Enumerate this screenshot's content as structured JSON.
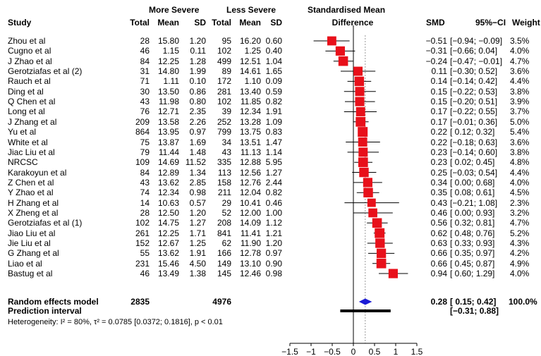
{
  "chart_data": {
    "type": "forest",
    "title": "",
    "headers": {
      "study": "Study",
      "group1": "More Severe",
      "group2": "Less Severe",
      "total": "Total",
      "mean": "Mean",
      "sd": "SD",
      "plot_line1": "Standardised Mean",
      "plot_line2": "Difference",
      "smd": "SMD",
      "ci": "95%−CI",
      "weight": "Weight"
    },
    "studies": [
      {
        "study": "Zhou et al",
        "n1": "28",
        "m1": "15.80",
        "sd1": "1.20",
        "n2": "95",
        "m2": "16.20",
        "sd2": "0.60",
        "smd": -0.51,
        "lo": -0.94,
        "hi": -0.09,
        "smd_text": "−0.51",
        "ci_text": "[−0.94; −0.09]",
        "weight": "3.5%"
      },
      {
        "study": "Cugno et al",
        "n1": "46",
        "m1": "1.15",
        "sd1": "0.11",
        "n2": "102",
        "m2": "1.25",
        "sd2": "0.40",
        "smd": -0.31,
        "lo": -0.66,
        "hi": 0.04,
        "smd_text": "−0.31",
        "ci_text": "[−0.66; 0.04]",
        "weight": "4.0%"
      },
      {
        "study": "J Zhao et al",
        "n1": "84",
        "m1": "12.25",
        "sd1": "1.28",
        "n2": "499",
        "m2": "12.51",
        "sd2": "1.04",
        "smd": -0.24,
        "lo": -0.47,
        "hi": -0.01,
        "smd_text": "−0.24",
        "ci_text": "[−0.47; −0.01]",
        "weight": "4.7%"
      },
      {
        "study": "Gerotziafas et al (2)",
        "n1": "31",
        "m1": "14.80",
        "sd1": "1.99",
        "n2": "89",
        "m2": "14.61",
        "sd2": "1.65",
        "smd": 0.11,
        "lo": -0.3,
        "hi": 0.52,
        "smd_text": "0.11",
        "ci_text": "[−0.30; 0.52]",
        "weight": "3.6%"
      },
      {
        "study": "Rauch et al",
        "n1": "71",
        "m1": "1.11",
        "sd1": "0.10",
        "n2": "172",
        "m2": "1.10",
        "sd2": "0.09",
        "smd": 0.14,
        "lo": -0.14,
        "hi": 0.42,
        "smd_text": "0.14",
        "ci_text": "[−0.14; 0.42]",
        "weight": "4.4%"
      },
      {
        "study": "Ding et al",
        "n1": "30",
        "m1": "13.50",
        "sd1": "0.86",
        "n2": "281",
        "m2": "13.40",
        "sd2": "0.59",
        "smd": 0.15,
        "lo": -0.22,
        "hi": 0.53,
        "smd_text": "0.15",
        "ci_text": "[−0.22; 0.53]",
        "weight": "3.8%"
      },
      {
        "study": "Q Chen et al",
        "n1": "43",
        "m1": "11.98",
        "sd1": "0.80",
        "n2": "102",
        "m2": "11.85",
        "sd2": "0.82",
        "smd": 0.15,
        "lo": -0.2,
        "hi": 0.51,
        "smd_text": "0.15",
        "ci_text": "[−0.20; 0.51]",
        "weight": "3.9%"
      },
      {
        "study": "Long et al",
        "n1": "76",
        "m1": "12.71",
        "sd1": "2.35",
        "n2": "39",
        "m2": "12.34",
        "sd2": "1.91",
        "smd": 0.17,
        "lo": -0.22,
        "hi": 0.55,
        "smd_text": "0.17",
        "ci_text": "[−0.22; 0.55]",
        "weight": "3.7%"
      },
      {
        "study": "J Zhang et al",
        "n1": "209",
        "m1": "13.58",
        "sd1": "2.26",
        "n2": "252",
        "m2": "13.28",
        "sd2": "1.09",
        "smd": 0.17,
        "lo": -0.01,
        "hi": 0.36,
        "smd_text": "0.17",
        "ci_text": "[−0.01; 0.36]",
        "weight": "5.0%"
      },
      {
        "study": "Yu et al",
        "n1": "864",
        "m1": "13.95",
        "sd1": "0.97",
        "n2": "799",
        "m2": "13.75",
        "sd2": "0.83",
        "smd": 0.22,
        "lo": 0.12,
        "hi": 0.32,
        "smd_text": "0.22",
        "ci_text": "[ 0.12; 0.32]",
        "weight": "5.4%"
      },
      {
        "study": "White et al",
        "n1": "75",
        "m1": "13.87",
        "sd1": "1.69",
        "n2": "34",
        "m2": "13.51",
        "sd2": "1.47",
        "smd": 0.22,
        "lo": -0.18,
        "hi": 0.63,
        "smd_text": "0.22",
        "ci_text": "[−0.18; 0.63]",
        "weight": "3.6%"
      },
      {
        "study": "Jiac Liu et al",
        "n1": "79",
        "m1": "11.44",
        "sd1": "1.48",
        "n2": "43",
        "m2": "11.13",
        "sd2": "1.14",
        "smd": 0.23,
        "lo": -0.14,
        "hi": 0.6,
        "smd_text": "0.23",
        "ci_text": "[−0.14; 0.60]",
        "weight": "3.8%"
      },
      {
        "study": "NRCSC",
        "n1": "109",
        "m1": "14.69",
        "sd1": "11.52",
        "n2": "335",
        "m2": "12.88",
        "sd2": "5.95",
        "smd": 0.23,
        "lo": 0.02,
        "hi": 0.45,
        "smd_text": "0.23",
        "ci_text": "[ 0.02; 0.45]",
        "weight": "4.8%"
      },
      {
        "study": "Karakoyun et al",
        "n1": "84",
        "m1": "12.89",
        "sd1": "1.34",
        "n2": "113",
        "m2": "12.56",
        "sd2": "1.27",
        "smd": 0.25,
        "lo": -0.03,
        "hi": 0.54,
        "smd_text": "0.25",
        "ci_text": "[−0.03; 0.54]",
        "weight": "4.4%"
      },
      {
        "study": "Z Chen et al",
        "n1": "43",
        "m1": "13.62",
        "sd1": "2.85",
        "n2": "158",
        "m2": "12.76",
        "sd2": "2.44",
        "smd": 0.34,
        "lo": 0.0,
        "hi": 0.68,
        "smd_text": "0.34",
        "ci_text": "[ 0.00; 0.68]",
        "weight": "4.0%"
      },
      {
        "study": "Y Zhao et al",
        "n1": "74",
        "m1": "12.34",
        "sd1": "0.98",
        "n2": "211",
        "m2": "12.04",
        "sd2": "0.82",
        "smd": 0.35,
        "lo": 0.08,
        "hi": 0.61,
        "smd_text": "0.35",
        "ci_text": "[ 0.08; 0.61]",
        "weight": "4.5%"
      },
      {
        "study": "H Zhang et al",
        "n1": "14",
        "m1": "10.63",
        "sd1": "0.57",
        "n2": "29",
        "m2": "10.41",
        "sd2": "0.46",
        "smd": 0.43,
        "lo": -0.21,
        "hi": 1.08,
        "smd_text": "0.43",
        "ci_text": "[−0.21; 1.08]",
        "weight": "2.3%"
      },
      {
        "study": "X Zheng et al",
        "n1": "28",
        "m1": "12.50",
        "sd1": "1.20",
        "n2": "52",
        "m2": "12.00",
        "sd2": "1.00",
        "smd": 0.46,
        "lo": 0.0,
        "hi": 0.93,
        "smd_text": "0.46",
        "ci_text": "[ 0.00; 0.93]",
        "weight": "3.2%"
      },
      {
        "study": "Gerotziafas et al (1)",
        "n1": "102",
        "m1": "14.75",
        "sd1": "1.27",
        "n2": "208",
        "m2": "14.09",
        "sd2": "1.12",
        "smd": 0.56,
        "lo": 0.32,
        "hi": 0.81,
        "smd_text": "0.56",
        "ci_text": "[ 0.32; 0.81]",
        "weight": "4.7%"
      },
      {
        "study": "Jiao Liu et al",
        "n1": "261",
        "m1": "12.25",
        "sd1": "1.71",
        "n2": "841",
        "m2": "11.41",
        "sd2": "1.21",
        "smd": 0.62,
        "lo": 0.48,
        "hi": 0.76,
        "smd_text": "0.62",
        "ci_text": "[ 0.48; 0.76]",
        "weight": "5.2%"
      },
      {
        "study": "Jie Liu et al",
        "n1": "152",
        "m1": "12.67",
        "sd1": "1.25",
        "n2": "62",
        "m2": "11.90",
        "sd2": "1.20",
        "smd": 0.63,
        "lo": 0.33,
        "hi": 0.93,
        "smd_text": "0.63",
        "ci_text": "[ 0.33; 0.93]",
        "weight": "4.3%"
      },
      {
        "study": "G Zhang et al",
        "n1": "55",
        "m1": "13.62",
        "sd1": "1.91",
        "n2": "166",
        "m2": "12.78",
        "sd2": "0.97",
        "smd": 0.66,
        "lo": 0.35,
        "hi": 0.97,
        "smd_text": "0.66",
        "ci_text": "[ 0.35; 0.97]",
        "weight": "4.2%"
      },
      {
        "study": "Liao et al",
        "n1": "231",
        "m1": "15.46",
        "sd1": "4.50",
        "n2": "149",
        "m2": "13.10",
        "sd2": "0.90",
        "smd": 0.66,
        "lo": 0.45,
        "hi": 0.87,
        "smd_text": "0.66",
        "ci_text": "[ 0.45; 0.87]",
        "weight": "4.9%"
      },
      {
        "study": "Bastug et al",
        "n1": "46",
        "m1": "13.49",
        "sd1": "1.38",
        "n2": "145",
        "m2": "12.46",
        "sd2": "0.98",
        "smd": 0.94,
        "lo": 0.6,
        "hi": 1.29,
        "smd_text": "0.94",
        "ci_text": "[ 0.60; 1.29]",
        "weight": "4.0%"
      }
    ],
    "summary": {
      "label": "Random effects model",
      "n1": "2835",
      "n2": "4976",
      "smd": 0.28,
      "lo": 0.15,
      "hi": 0.42,
      "smd_text": "0.28",
      "ci_text": "[ 0.15; 0.42]",
      "weight": "100.0%"
    },
    "prediction": {
      "label": "Prediction interval",
      "lo": -0.31,
      "hi": 0.88,
      "ci_text": "[−0.31; 0.88]"
    },
    "heterogeneity": "Heterogeneity: I² = 80%, τ² = 0.0785 [0.0372; 0.1816], p < 0.01",
    "x_ticks": [
      -1.5,
      -1,
      -0.5,
      0,
      0.5,
      1,
      1.5
    ],
    "x_tick_labels": [
      "−1.5",
      "−1",
      "−0.5",
      "0",
      "0.5",
      "1",
      "1.5"
    ],
    "xlim": [
      -1.5,
      1.5
    ],
    "grid": false,
    "colors": {
      "box": "#e8101a",
      "diamond": "#1b1bd6",
      "line": "#000000",
      "ref_dotted": "#9a9a9a"
    }
  }
}
